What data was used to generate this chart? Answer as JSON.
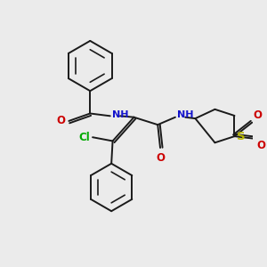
{
  "background_color": "#ebebeb",
  "bond_color": "#1a1a1a",
  "bond_width": 1.4,
  "colors": {
    "C": "#1a1a1a",
    "N": "#1414cc",
    "O": "#cc0000",
    "S": "#b8b800",
    "Cl": "#00aa00"
  },
  "font_size": 8.5
}
